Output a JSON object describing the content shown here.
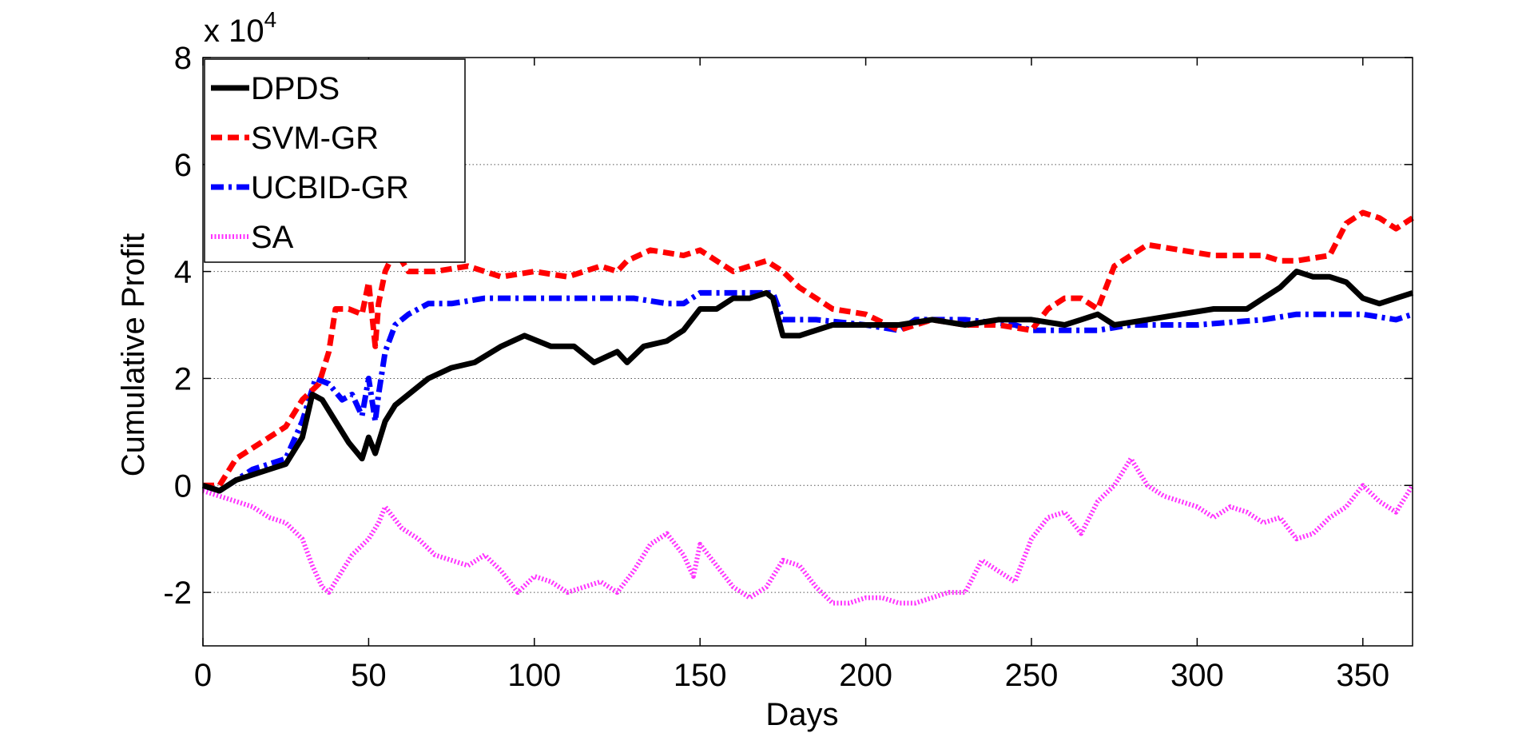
{
  "chart_data": {
    "type": "line",
    "xlabel": "Days",
    "ylabel": "Cumulative Profit",
    "y_multiplier_label": "x 10",
    "y_multiplier_exp": "4",
    "xlim": [
      0,
      365
    ],
    "ylim": [
      -3,
      8
    ],
    "x_ticks": [
      0,
      50,
      100,
      150,
      200,
      250,
      300,
      350
    ],
    "y_ticks": [
      -2,
      0,
      2,
      4,
      6,
      8
    ],
    "grid": "horizontal dotted",
    "legend_position": "top-left",
    "series": [
      {
        "name": "DPDS",
        "color": "#000000",
        "style": "solid",
        "x": [
          0,
          5,
          10,
          15,
          20,
          25,
          30,
          33,
          36,
          40,
          44,
          48,
          50,
          52,
          55,
          58,
          62,
          68,
          75,
          82,
          90,
          97,
          105,
          112,
          118,
          125,
          128,
          133,
          140,
          145,
          150,
          155,
          160,
          165,
          170,
          172,
          175,
          180,
          190,
          200,
          210,
          220,
          230,
          240,
          250,
          260,
          265,
          270,
          275,
          285,
          295,
          305,
          315,
          320,
          325,
          330,
          335,
          340,
          345,
          350,
          355,
          360,
          365
        ],
        "values": [
          0.0,
          -0.1,
          0.1,
          0.2,
          0.3,
          0.4,
          0.9,
          1.7,
          1.6,
          1.2,
          0.8,
          0.5,
          0.9,
          0.6,
          1.2,
          1.5,
          1.7,
          2.0,
          2.2,
          2.3,
          2.6,
          2.8,
          2.6,
          2.6,
          2.3,
          2.5,
          2.3,
          2.6,
          2.7,
          2.9,
          3.3,
          3.3,
          3.5,
          3.5,
          3.6,
          3.5,
          2.8,
          2.8,
          3.0,
          3.0,
          3.0,
          3.1,
          3.0,
          3.1,
          3.1,
          3.0,
          3.1,
          3.2,
          3.0,
          3.1,
          3.2,
          3.3,
          3.3,
          3.5,
          3.7,
          4.0,
          3.9,
          3.9,
          3.8,
          3.5,
          3.4,
          3.5,
          3.6
        ]
      },
      {
        "name": "SVM-GR",
        "color": "#ff0000",
        "style": "dashed",
        "x": [
          0,
          5,
          10,
          15,
          20,
          25,
          30,
          35,
          38,
          40,
          44,
          48,
          50,
          52,
          53,
          55,
          58,
          62,
          70,
          80,
          90,
          100,
          110,
          120,
          125,
          128,
          135,
          145,
          150,
          155,
          160,
          165,
          170,
          175,
          180,
          185,
          190,
          200,
          210,
          220,
          230,
          240,
          250,
          255,
          260,
          265,
          270,
          275,
          285,
          295,
          305,
          315,
          320,
          325,
          330,
          340,
          345,
          350,
          355,
          360,
          365
        ],
        "values": [
          0.0,
          0.0,
          0.5,
          0.7,
          0.9,
          1.1,
          1.6,
          1.9,
          2.5,
          3.3,
          3.3,
          3.2,
          3.8,
          2.6,
          3.4,
          4.0,
          4.4,
          4.0,
          4.0,
          4.1,
          3.9,
          4.0,
          3.9,
          4.1,
          4.0,
          4.2,
          4.4,
          4.3,
          4.4,
          4.2,
          4.0,
          4.1,
          4.2,
          4.0,
          3.7,
          3.5,
          3.3,
          3.2,
          2.9,
          3.1,
          3.0,
          3.0,
          2.9,
          3.3,
          3.5,
          3.5,
          3.3,
          4.1,
          4.5,
          4.4,
          4.3,
          4.3,
          4.3,
          4.2,
          4.2,
          4.3,
          4.9,
          5.1,
          5.0,
          4.8,
          5.0
        ]
      },
      {
        "name": "UCBID-GR",
        "color": "#0000ff",
        "style": "dashdot",
        "x": [
          0,
          5,
          10,
          15,
          20,
          25,
          30,
          34,
          38,
          42,
          45,
          48,
          50,
          52,
          53,
          55,
          58,
          62,
          68,
          75,
          85,
          100,
          120,
          130,
          140,
          145,
          150,
          160,
          170,
          172,
          175,
          185,
          200,
          210,
          215,
          230,
          245,
          250,
          260,
          270,
          280,
          300,
          320,
          330,
          340,
          350,
          360,
          365
        ],
        "values": [
          0.0,
          -0.1,
          0.1,
          0.3,
          0.4,
          0.5,
          1.2,
          2.0,
          1.9,
          1.6,
          1.7,
          1.3,
          2.0,
          1.2,
          1.7,
          2.5,
          3.0,
          3.2,
          3.4,
          3.4,
          3.5,
          3.5,
          3.5,
          3.5,
          3.4,
          3.4,
          3.6,
          3.6,
          3.6,
          3.6,
          3.1,
          3.1,
          3.0,
          2.9,
          3.1,
          3.1,
          3.0,
          2.9,
          2.9,
          2.9,
          3.0,
          3.0,
          3.1,
          3.2,
          3.2,
          3.2,
          3.1,
          3.2
        ]
      },
      {
        "name": "SA",
        "color": "#ff33ff",
        "style": "dotted",
        "x": [
          0,
          5,
          10,
          15,
          20,
          25,
          30,
          33,
          36,
          38,
          42,
          45,
          50,
          53,
          55,
          60,
          65,
          70,
          75,
          80,
          85,
          90,
          95,
          100,
          105,
          110,
          115,
          120,
          125,
          130,
          135,
          140,
          145,
          148,
          150,
          155,
          160,
          165,
          170,
          175,
          180,
          185,
          190,
          195,
          200,
          205,
          210,
          215,
          220,
          225,
          230,
          235,
          240,
          245,
          250,
          255,
          260,
          265,
          270,
          275,
          280,
          285,
          290,
          295,
          300,
          305,
          310,
          315,
          320,
          325,
          330,
          335,
          340,
          345,
          350,
          355,
          360,
          365
        ],
        "values": [
          -0.1,
          -0.2,
          -0.3,
          -0.4,
          -0.6,
          -0.7,
          -1.0,
          -1.5,
          -1.9,
          -2.0,
          -1.6,
          -1.3,
          -1.0,
          -0.7,
          -0.4,
          -0.8,
          -1.0,
          -1.3,
          -1.4,
          -1.5,
          -1.3,
          -1.6,
          -2.0,
          -1.7,
          -1.8,
          -2.0,
          -1.9,
          -1.8,
          -2.0,
          -1.6,
          -1.1,
          -0.9,
          -1.3,
          -1.7,
          -1.1,
          -1.5,
          -1.9,
          -2.1,
          -1.9,
          -1.4,
          -1.5,
          -1.9,
          -2.2,
          -2.2,
          -2.1,
          -2.1,
          -2.2,
          -2.2,
          -2.1,
          -2.0,
          -2.0,
          -1.4,
          -1.6,
          -1.8,
          -1.0,
          -0.6,
          -0.5,
          -0.9,
          -0.3,
          0.0,
          0.5,
          0.0,
          -0.2,
          -0.3,
          -0.4,
          -0.6,
          -0.4,
          -0.5,
          -0.7,
          -0.6,
          -1.0,
          -0.9,
          -0.6,
          -0.4,
          0.0,
          -0.3,
          -0.5,
          0.0
        ]
      }
    ]
  }
}
